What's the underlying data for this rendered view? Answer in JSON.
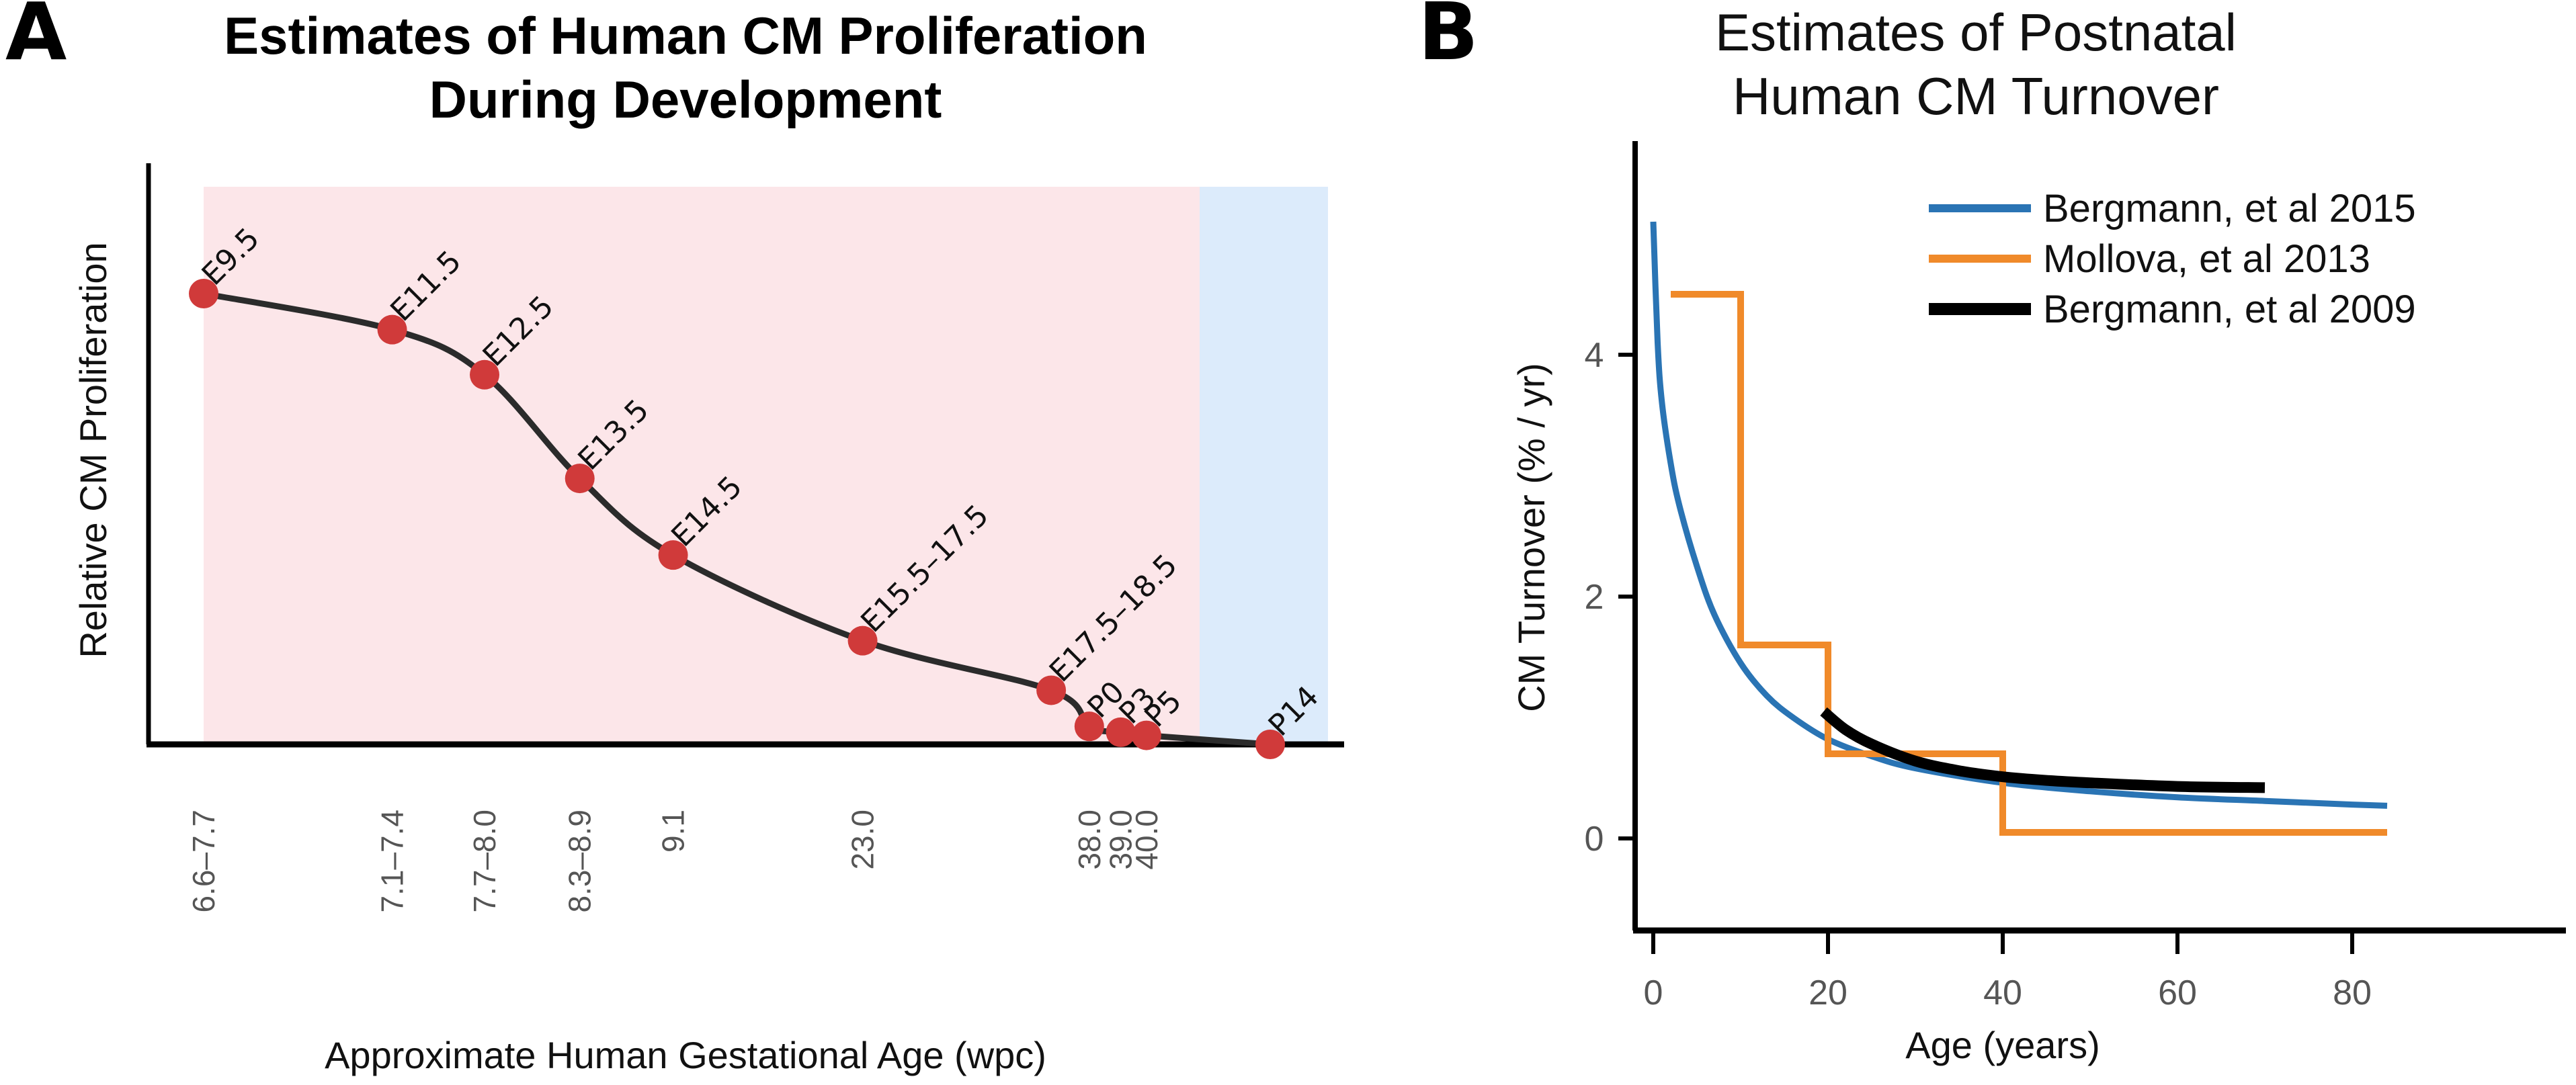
{
  "panels": {
    "a": {
      "letter": "A"
    },
    "b": {
      "letter": "B"
    }
  },
  "colors": {
    "prenatal_band": "#fce6e9",
    "postnatal_band": "#dcebfb",
    "curve_a": "#2b2b2b",
    "points_a": "#d03a3a",
    "bergmann2015": "#2a74b4",
    "mollova2013": "#f08a2a",
    "bergmann2009": "#000000",
    "axis": "#000000"
  },
  "chart_data": [
    {
      "type": "line",
      "title": [
        "Estimates of Human CM Proliferation",
        "During Development"
      ],
      "xlabel": "Approximate Human Gestational Age (wpc)",
      "ylabel": "Relative CM Proliferation",
      "grid": false,
      "y_ticks": "none",
      "ylim": [
        0,
        1
      ],
      "bands": [
        {
          "name": "prenatal",
          "from_index": 0,
          "to_index": 10
        },
        {
          "name": "postnatal",
          "from_index": 10,
          "to_index": 12
        }
      ],
      "points": [
        {
          "label": "E9.5",
          "xtick": "6.6–7.7",
          "pos": 0.0,
          "y": 1.0
        },
        {
          "label": "E11.5",
          "xtick": "7.1–7.4",
          "pos": 0.198,
          "y": 0.92
        },
        {
          "label": "E12.5",
          "xtick": "7.7–8.0",
          "pos": 0.295,
          "y": 0.82
        },
        {
          "label": "E13.5",
          "xtick": "8.3–8.9",
          "pos": 0.395,
          "y": 0.59
        },
        {
          "label": "E14.5",
          "xtick": "9.1",
          "pos": 0.493,
          "y": 0.42
        },
        {
          "label": "E15.5–17.5",
          "xtick": "23.0",
          "pos": 0.692,
          "y": 0.23
        },
        {
          "label": "E17.5–18.5",
          "xtick": "",
          "pos": 0.89,
          "y": 0.12
        },
        {
          "label": "P0",
          "xtick": "38.0",
          "pos": 0.93,
          "y": 0.04
        },
        {
          "label": "P3",
          "xtick": "39.0",
          "pos": 0.963,
          "y": 0.027
        },
        {
          "label": "P5",
          "xtick": "40.0",
          "pos": 0.99,
          "y": 0.02
        },
        {
          "label": "P14",
          "xtick": "",
          "pos": 1.12,
          "y": 0.0
        }
      ]
    },
    {
      "type": "line",
      "title": [
        "Estimates of Postnatal",
        "Human CM Turnover"
      ],
      "xlabel": "Age (years)",
      "ylabel": "CM Turnover (% / yr)",
      "xlim": [
        -2,
        84
      ],
      "ylim": [
        -0.3,
        5.8
      ],
      "x_ticks": [
        0,
        20,
        40,
        60,
        80
      ],
      "y_ticks": [
        0,
        2,
        4
      ],
      "grid": false,
      "legend_position": "top-right",
      "series": [
        {
          "name": "Bergmann, et al 2015",
          "style": "smooth",
          "points": [
            [
              0,
              5.1
            ],
            [
              0.5,
              4.1
            ],
            [
              1,
              3.6
            ],
            [
              2,
              3.1
            ],
            [
              3,
              2.75
            ],
            [
              5,
              2.25
            ],
            [
              7,
              1.85
            ],
            [
              10,
              1.45
            ],
            [
              13,
              1.18
            ],
            [
              16,
              1.0
            ],
            [
              20,
              0.82
            ],
            [
              25,
              0.68
            ],
            [
              30,
              0.58
            ],
            [
              40,
              0.46
            ],
            [
              50,
              0.39
            ],
            [
              60,
              0.34
            ],
            [
              70,
              0.31
            ],
            [
              80,
              0.28
            ],
            [
              84,
              0.27
            ]
          ]
        },
        {
          "name": "Mollova, et al 2013",
          "style": "step",
          "points": [
            [
              2,
              4.5
            ],
            [
              10,
              4.5
            ],
            [
              10,
              1.6
            ],
            [
              20,
              1.6
            ],
            [
              20,
              0.7
            ],
            [
              40,
              0.7
            ],
            [
              40,
              0.05
            ],
            [
              84,
              0.05
            ]
          ]
        },
        {
          "name": "Bergmann, et al 2009",
          "style": "smooth",
          "points": [
            [
              19.5,
              1.05
            ],
            [
              22,
              0.9
            ],
            [
              25,
              0.78
            ],
            [
              30,
              0.64
            ],
            [
              35,
              0.56
            ],
            [
              40,
              0.51
            ],
            [
              45,
              0.48
            ],
            [
              50,
              0.46
            ],
            [
              60,
              0.43
            ],
            [
              70,
              0.42
            ]
          ]
        }
      ]
    }
  ]
}
